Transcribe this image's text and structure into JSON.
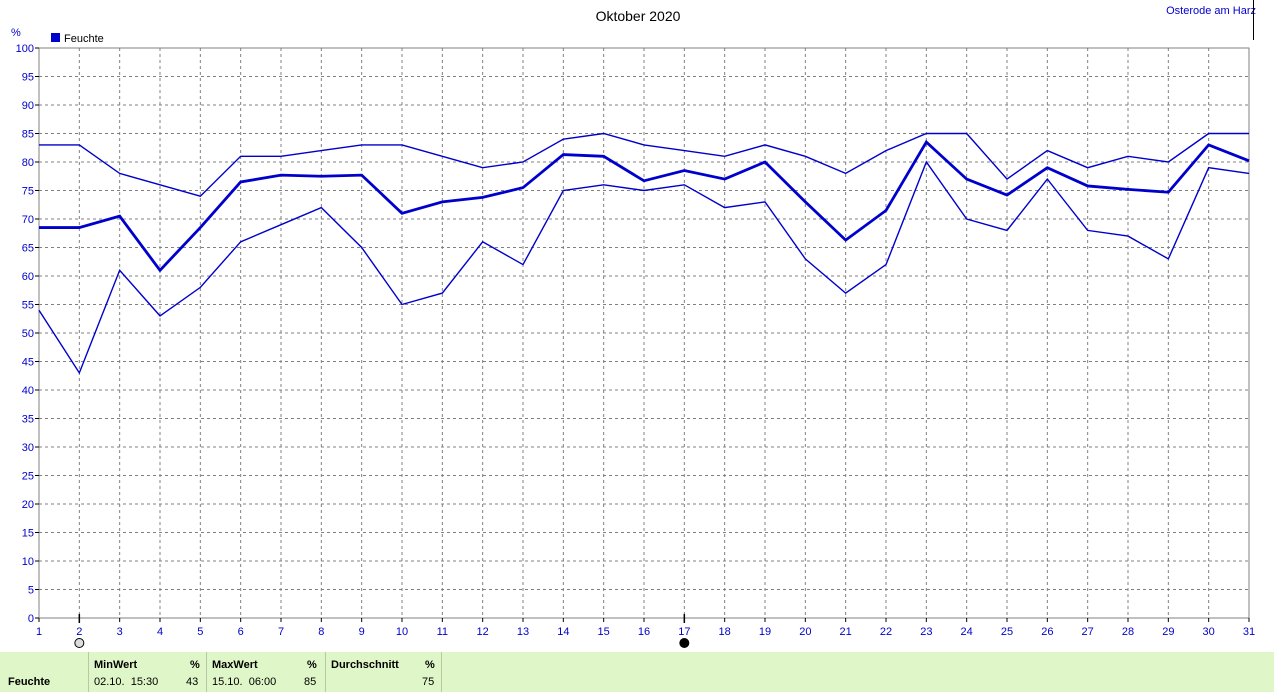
{
  "chart_data": {
    "type": "line",
    "title": "Oktober 2020",
    "ylabel": "%",
    "ylim": [
      0,
      100
    ],
    "yticks": [
      0,
      5,
      10,
      15,
      20,
      25,
      30,
      35,
      40,
      45,
      50,
      55,
      60,
      65,
      70,
      75,
      80,
      85,
      90,
      95,
      100
    ],
    "x": [
      1,
      2,
      3,
      4,
      5,
      6,
      7,
      8,
      9,
      10,
      11,
      12,
      13,
      14,
      15,
      16,
      17,
      18,
      19,
      20,
      21,
      22,
      23,
      24,
      25,
      26,
      27,
      28,
      29,
      30,
      31
    ],
    "legend": "Feuchte",
    "series": [
      {
        "values": [
          83,
          83,
          78,
          76,
          74,
          81,
          81,
          82,
          83,
          83,
          81,
          79,
          80,
          84,
          85,
          83,
          82,
          81,
          83,
          81,
          78,
          82,
          85,
          85,
          77,
          82,
          79,
          81,
          80,
          85,
          85
        ]
      },
      {
        "values": [
          68.5,
          68.5,
          70.5,
          61,
          68.5,
          76.5,
          77.7,
          77.5,
          77.7,
          71,
          73,
          73.8,
          75.5,
          81.3,
          81,
          76.7,
          78.5,
          77,
          80,
          73,
          66.3,
          71.5,
          83.5,
          77,
          74.2,
          79,
          75.8,
          75.2,
          74.7,
          83,
          80.2
        ]
      },
      {
        "values": [
          54,
          43,
          61,
          53,
          58,
          66,
          69,
          72,
          65,
          55,
          57,
          66,
          62,
          75,
          76,
          75,
          76,
          72,
          73,
          63,
          57,
          62,
          80,
          70,
          68,
          77,
          68,
          67,
          63,
          79,
          78
        ]
      }
    ],
    "grid": true,
    "color": "#0000cc",
    "markers": [
      2,
      17
    ]
  },
  "station": "Osterode am Harz",
  "footer": {
    "row_label": "Feuchte",
    "min_header": "MinWert",
    "min_unit": "%",
    "min_time": "02.10.  15:30",
    "min_value": "43",
    "max_header": "MaxWert",
    "max_unit": "%",
    "max_time": "15.10.  06:00",
    "max_value": "85",
    "avg_header": "Durchschnitt",
    "avg_unit": "%",
    "avg_value": "75"
  }
}
